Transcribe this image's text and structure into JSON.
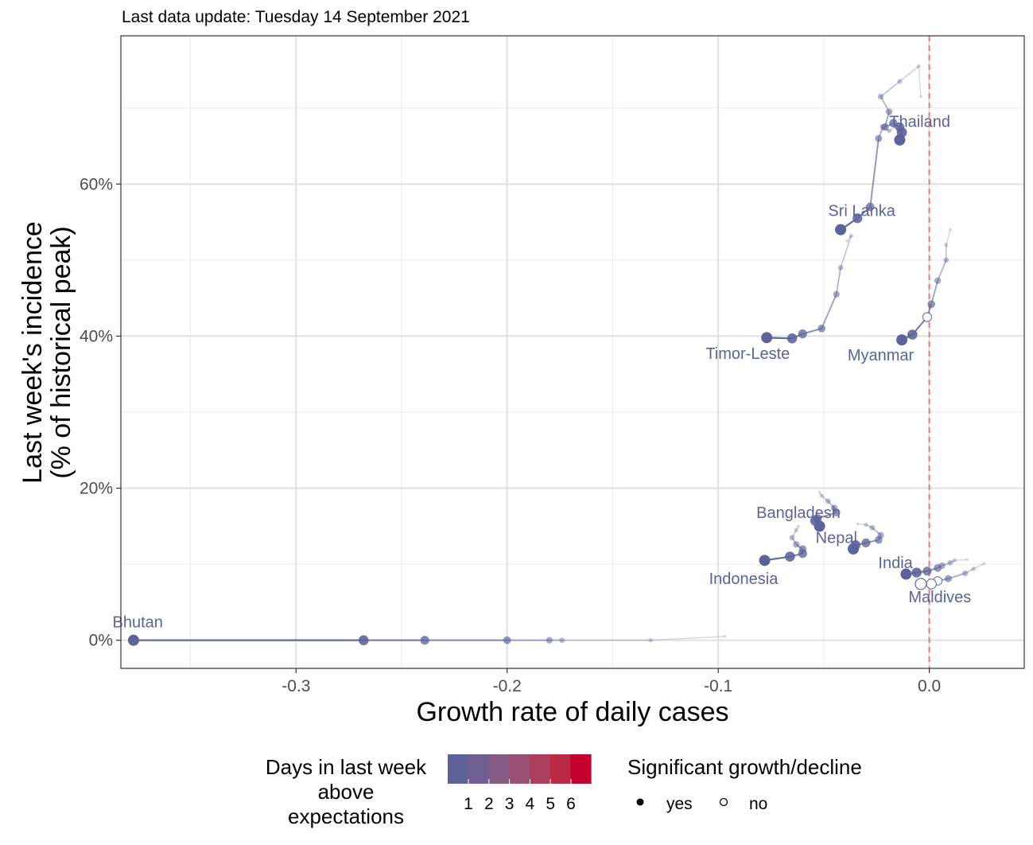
{
  "subtitle": "Last data update: Tuesday 14 September 2021",
  "chart_data": {
    "type": "scatter",
    "xlabel": "Growth rate of daily cases",
    "ylabel_lines": [
      "Last week's incidence",
      "(% of historical peak)"
    ],
    "xlim": [
      -0.383,
      0.045
    ],
    "ylim": [
      -3.7,
      79.5
    ],
    "x_ticks": [
      {
        "value": -0.3,
        "label": "-0.3"
      },
      {
        "value": -0.2,
        "label": "-0.2"
      },
      {
        "value": -0.1,
        "label": "-0.1"
      },
      {
        "value": 0.0,
        "label": "0.0"
      }
    ],
    "y_ticks": [
      {
        "value": 0,
        "label": "0%"
      },
      {
        "value": 20,
        "label": "20%"
      },
      {
        "value": 40,
        "label": "40%"
      },
      {
        "value": 60,
        "label": "60%"
      }
    ],
    "reference_line_x": 0,
    "reference_line_color": "#f8766d",
    "grid": true,
    "point_color": "#5d629b",
    "series": [
      {
        "name": "Thailand",
        "label": {
          "text": "Thailand",
          "x": -0.0045,
          "y": 67.5,
          "anchor": "middle"
        },
        "points": [
          {
            "x": -0.004,
            "y": 71.5,
            "filled": true
          },
          {
            "x": -0.005,
            "y": 75.5,
            "filled": true
          },
          {
            "x": -0.014,
            "y": 73.5,
            "filled": true
          },
          {
            "x": -0.023,
            "y": 71.5,
            "filled": true
          },
          {
            "x": -0.019,
            "y": 69.5,
            "filled": true
          },
          {
            "x": -0.021,
            "y": 67.5,
            "filled": true
          },
          {
            "x": -0.017,
            "y": 68.0,
            "filled": true
          },
          {
            "x": -0.014,
            "y": 67.5,
            "filled": true
          },
          {
            "x": -0.013,
            "y": 66.8,
            "filled": true
          },
          {
            "x": -0.014,
            "y": 65.8,
            "filled": true
          }
        ]
      },
      {
        "name": "Sri Lanka",
        "label": {
          "text": "Sri Lanka",
          "x": -0.032,
          "y": 55.8,
          "anchor": "middle"
        },
        "points": [
          {
            "x": -0.016,
            "y": 67.5,
            "filled": true
          },
          {
            "x": -0.019,
            "y": 67.0,
            "filled": true
          },
          {
            "x": -0.022,
            "y": 67.5,
            "filled": true
          },
          {
            "x": -0.024,
            "y": 66.0,
            "filled": true
          },
          {
            "x": -0.028,
            "y": 57.0,
            "filled": true
          },
          {
            "x": -0.034,
            "y": 55.5,
            "filled": true
          },
          {
            "x": -0.042,
            "y": 54.0,
            "filled": true
          }
        ]
      },
      {
        "name": "Timor-Leste",
        "label": {
          "text": "Timor-Leste",
          "x": -0.086,
          "y": 37.0,
          "anchor": "middle"
        },
        "points": [
          {
            "x": -0.039,
            "y": 52.5,
            "filled": true
          },
          {
            "x": -0.037,
            "y": 53.2,
            "filled": true
          },
          {
            "x": -0.042,
            "y": 49.0,
            "filled": true
          },
          {
            "x": -0.044,
            "y": 45.5,
            "filled": true
          },
          {
            "x": -0.051,
            "y": 41.0,
            "filled": true
          },
          {
            "x": -0.06,
            "y": 40.3,
            "filled": true
          },
          {
            "x": -0.065,
            "y": 39.7,
            "filled": true
          },
          {
            "x": -0.077,
            "y": 39.8,
            "filled": true
          }
        ]
      },
      {
        "name": "Myanmar",
        "label": {
          "text": "Myanmar",
          "x": -0.023,
          "y": 36.8,
          "anchor": "middle"
        },
        "points": [
          {
            "x": 0.01,
            "y": 54.0,
            "filled": true
          },
          {
            "x": 0.008,
            "y": 52.0,
            "filled": true
          },
          {
            "x": 0.008,
            "y": 50.0,
            "filled": true
          },
          {
            "x": 0.004,
            "y": 47.3,
            "filled": true
          },
          {
            "x": 0.001,
            "y": 44.2,
            "filled": true
          },
          {
            "x": -0.001,
            "y": 42.5,
            "filled": false
          },
          {
            "x": -0.008,
            "y": 40.2,
            "filled": true
          },
          {
            "x": -0.013,
            "y": 39.5,
            "filled": true
          }
        ]
      },
      {
        "name": "Bangladesh",
        "label": {
          "text": "Bangladesh",
          "x": -0.062,
          "y": 16.1,
          "anchor": "middle"
        },
        "points": [
          {
            "x": -0.052,
            "y": 19.5,
            "filled": true
          },
          {
            "x": -0.051,
            "y": 19.0,
            "filled": true
          },
          {
            "x": -0.048,
            "y": 18.3,
            "filled": true
          },
          {
            "x": -0.045,
            "y": 17.4,
            "filled": true
          },
          {
            "x": -0.044,
            "y": 16.8,
            "filled": true
          },
          {
            "x": -0.053,
            "y": 16.0,
            "filled": true
          },
          {
            "x": -0.054,
            "y": 15.7,
            "filled": true
          },
          {
            "x": -0.052,
            "y": 15.0,
            "filled": true
          }
        ]
      },
      {
        "name": "Nepal",
        "label": {
          "text": "Nepal",
          "x": -0.044,
          "y": 12.8,
          "anchor": "middle"
        },
        "points": [
          {
            "x": -0.034,
            "y": 15.3,
            "filled": true
          },
          {
            "x": -0.03,
            "y": 15.2,
            "filled": true
          },
          {
            "x": -0.027,
            "y": 14.8,
            "filled": true
          },
          {
            "x": -0.023,
            "y": 13.8,
            "filled": true
          },
          {
            "x": -0.024,
            "y": 13.2,
            "filled": true
          },
          {
            "x": -0.03,
            "y": 12.8,
            "filled": true
          },
          {
            "x": -0.035,
            "y": 12.5,
            "filled": true
          },
          {
            "x": -0.036,
            "y": 12.0,
            "filled": true
          }
        ]
      },
      {
        "name": "Indonesia",
        "label": {
          "text": "Indonesia",
          "x": -0.088,
          "y": 7.4,
          "anchor": "middle"
        },
        "points": [
          {
            "x": -0.062,
            "y": 15.0,
            "filled": true
          },
          {
            "x": -0.063,
            "y": 14.5,
            "filled": true
          },
          {
            "x": -0.065,
            "y": 13.5,
            "filled": true
          },
          {
            "x": -0.063,
            "y": 12.6,
            "filled": true
          },
          {
            "x": -0.06,
            "y": 12.0,
            "filled": true
          },
          {
            "x": -0.06,
            "y": 11.4,
            "filled": true
          },
          {
            "x": -0.066,
            "y": 11.0,
            "filled": true
          },
          {
            "x": -0.078,
            "y": 10.5,
            "filled": true
          }
        ]
      },
      {
        "name": "India",
        "label": {
          "text": "India",
          "x": -0.016,
          "y": 9.5,
          "anchor": "middle"
        },
        "points": [
          {
            "x": 0.018,
            "y": 10.6,
            "filled": true
          },
          {
            "x": 0.012,
            "y": 10.5,
            "filled": true
          },
          {
            "x": 0.01,
            "y": 10.2,
            "filled": true
          },
          {
            "x": 0.006,
            "y": 9.8,
            "filled": true
          },
          {
            "x": 0.004,
            "y": 9.5,
            "filled": true
          },
          {
            "x": -0.001,
            "y": 9.1,
            "filled": true
          },
          {
            "x": -0.006,
            "y": 8.9,
            "filled": true
          },
          {
            "x": -0.011,
            "y": 8.7,
            "filled": true
          }
        ]
      },
      {
        "name": "Maldives",
        "label": {
          "text": "Maldives",
          "x": 0.005,
          "y": 5.0,
          "anchor": "middle"
        },
        "points": [
          {
            "x": 0.026,
            "y": 10.1,
            "filled": true
          },
          {
            "x": 0.021,
            "y": 9.4,
            "filled": true
          },
          {
            "x": 0.017,
            "y": 8.8,
            "filled": true
          },
          {
            "x": 0.009,
            "y": 8.1,
            "filled": true
          },
          {
            "x": 0.004,
            "y": 7.8,
            "filled": false
          },
          {
            "x": 0.001,
            "y": 7.4,
            "filled": false
          },
          {
            "x": -0.004,
            "y": 7.4,
            "filled": false
          }
        ]
      },
      {
        "name": "Bhutan",
        "label": {
          "text": "Bhutan",
          "x": -0.375,
          "y": 1.7,
          "anchor": "middle"
        },
        "points": [
          {
            "x": -0.097,
            "y": 0.5,
            "filled": true
          },
          {
            "x": -0.132,
            "y": 0.0,
            "filled": true
          },
          {
            "x": -0.174,
            "y": 0.0,
            "filled": true
          },
          {
            "x": -0.18,
            "y": 0.0,
            "filled": true
          },
          {
            "x": -0.2,
            "y": 0.0,
            "filled": true
          },
          {
            "x": -0.239,
            "y": 0.0,
            "filled": true
          },
          {
            "x": -0.268,
            "y": 0.0,
            "filled": true
          },
          {
            "x": -0.377,
            "y": 0.0,
            "filled": true
          }
        ]
      }
    ]
  },
  "legend": {
    "color_title_lines": [
      "Days in last week",
      "above",
      "expectations"
    ],
    "color_stops": [
      "#5d629b",
      "#6f5e92",
      "#855a85",
      "#9a4f74",
      "#ab3f5d",
      "#bb2a45",
      "#c4002f"
    ],
    "color_labels": [
      "1",
      "2",
      "3",
      "4",
      "5",
      "6"
    ],
    "shape_title": "Significant growth/decline",
    "shape_items": [
      {
        "label": "yes",
        "filled": true
      },
      {
        "label": "no",
        "filled": false
      }
    ]
  }
}
